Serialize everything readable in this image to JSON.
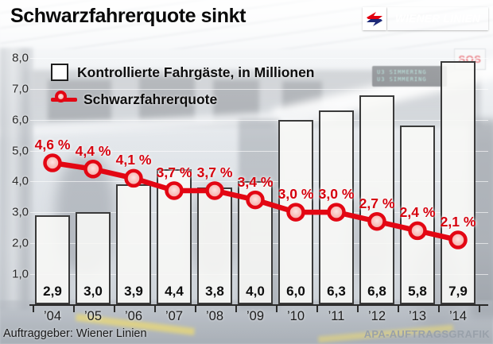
{
  "header": {
    "title": "Schwarzfahrerquote sinkt"
  },
  "logo": {
    "brand": "WIENER LINIEN",
    "brand_color": "#e3000f",
    "emblem": "wiener-linien-arrow"
  },
  "legend": [
    {
      "label": "Kontrollierte Fahrgäste, in Millionen",
      "swatch": "bar-square"
    },
    {
      "label": "Schwarzfahrerquote",
      "swatch": "red-line-marker"
    }
  ],
  "chart_data": {
    "type": "bar",
    "categories": [
      "’04",
      "’05",
      "’06",
      "’07",
      "’08",
      "’09",
      "’10",
      "’11",
      "’12",
      "’13",
      "’14"
    ],
    "series": [
      {
        "name": "Kontrollierte Fahrgäste, in Millionen",
        "type": "bar",
        "values": [
          2.9,
          3.0,
          3.9,
          4.4,
          3.8,
          4.0,
          6.0,
          6.3,
          6.8,
          5.8,
          7.9
        ],
        "value_labels": [
          "2,9",
          "3,0",
          "3,9",
          "4,4",
          "3,8",
          "4,0",
          "6,0",
          "6,3",
          "6,8",
          "5,8",
          "7,9"
        ]
      },
      {
        "name": "Schwarzfahrerquote",
        "type": "line",
        "values": [
          4.6,
          4.4,
          4.1,
          3.7,
          3.7,
          3.4,
          3.0,
          3.0,
          2.7,
          2.4,
          2.1
        ],
        "value_labels": [
          "4,6 %",
          "4,4 %",
          "4,1 %",
          "3,7 %",
          "3,7 %",
          "3,4 %",
          "3,0 %",
          "3,0 %",
          "2,7 %",
          "2,4 %",
          "2,1 %"
        ]
      }
    ],
    "ylim": [
      0,
      8
    ],
    "yticks": [
      {
        "v": 8,
        "label": "8,0"
      },
      {
        "v": 7,
        "label": "7,0"
      },
      {
        "v": 6,
        "label": "6,0"
      },
      {
        "v": 5,
        "label": "5,0"
      },
      {
        "v": 4,
        "label": "4,0"
      },
      {
        "v": 3,
        "label": "3,0"
      },
      {
        "v": 2,
        "label": "2,0"
      },
      {
        "v": 1,
        "label": "1,0"
      }
    ],
    "grid": true,
    "legend_position": "top-left",
    "colors": {
      "line": "#e30613",
      "marker_fill": "#f6b0ab",
      "bar_fill": "#f8f8f6",
      "bar_border": "#3a3a3a",
      "value_text": "#0d0d0d",
      "pct_text": "#d6000d"
    }
  },
  "background_photo": {
    "sos_sign": "SOS",
    "display_line1": "U3 SIMMERING",
    "display_line2": "U3 SIMMERING"
  },
  "footer": {
    "client": "Auftraggeber: Wiener Linien",
    "credit": "APA-AUFTRAGSGRAFIK"
  }
}
